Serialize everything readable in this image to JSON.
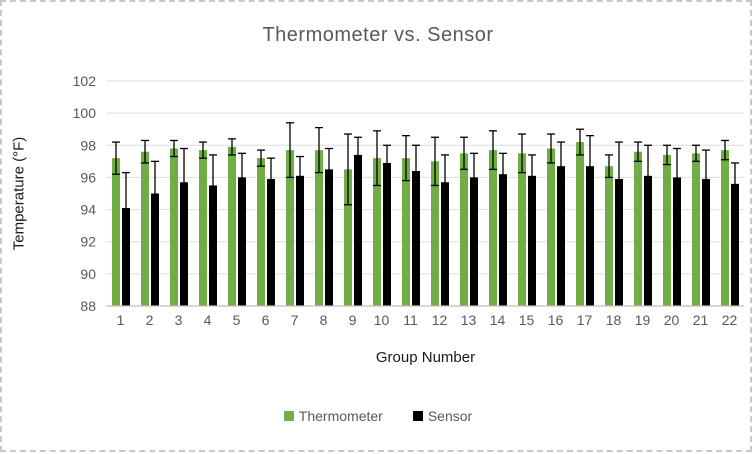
{
  "window": {
    "background": "#ffffff",
    "frame_border_color": "#c9c7c5"
  },
  "colors": {
    "thermometer_green": "#70AD47",
    "sensor_black": "#000000",
    "gridline": "#dedede",
    "axis_line": "#bfbfbf",
    "tick_label": "#595959",
    "title_text": "#595959",
    "axis_title_text": "#1a1a1a",
    "error_bar": "#000000"
  },
  "chart_data": {
    "type": "bar",
    "title": "Thermometer vs. Sensor",
    "xlabel": "Group Number",
    "ylabel": "Temperature (°F)",
    "ylim": [
      88,
      102
    ],
    "ytick_step": 2,
    "yticks": [
      88,
      90,
      92,
      94,
      96,
      98,
      100,
      102
    ],
    "grid": true,
    "legend_position": "bottom",
    "error_bars": "symmetric, black, caps; lower half hidden behind black bars",
    "categories": [
      "1",
      "2",
      "3",
      "4",
      "5",
      "6",
      "7",
      "8",
      "9",
      "10",
      "11",
      "12",
      "13",
      "14",
      "15",
      "16",
      "17",
      "18",
      "19",
      "20",
      "21",
      "22"
    ],
    "series": [
      {
        "name": "Thermometer",
        "color": "#70AD47",
        "values": [
          97.2,
          97.6,
          97.8,
          97.7,
          97.9,
          97.2,
          97.7,
          97.7,
          96.5,
          97.2,
          97.2,
          97.0,
          97.5,
          97.7,
          97.5,
          97.8,
          98.2,
          96.7,
          97.6,
          97.4,
          97.5,
          97.7
        ],
        "errors": [
          1.0,
          0.7,
          0.5,
          0.5,
          0.5,
          0.5,
          1.7,
          1.4,
          2.2,
          1.7,
          1.4,
          1.5,
          1.0,
          1.2,
          1.2,
          0.9,
          0.8,
          0.7,
          0.6,
          0.6,
          0.5,
          0.6
        ]
      },
      {
        "name": "Sensor",
        "color": "#000000",
        "values": [
          94.1,
          95.0,
          95.7,
          95.5,
          96.0,
          95.9,
          96.1,
          96.5,
          97.4,
          96.9,
          96.4,
          95.7,
          96.0,
          96.2,
          96.1,
          96.7,
          96.7,
          95.9,
          96.1,
          96.0,
          95.9,
          95.6
        ],
        "errors": [
          2.2,
          2.0,
          2.1,
          1.9,
          1.5,
          1.3,
          1.2,
          1.3,
          1.1,
          1.1,
          1.6,
          1.7,
          1.5,
          1.3,
          1.3,
          1.5,
          1.9,
          2.3,
          1.9,
          1.8,
          1.8,
          1.3
        ]
      }
    ]
  }
}
